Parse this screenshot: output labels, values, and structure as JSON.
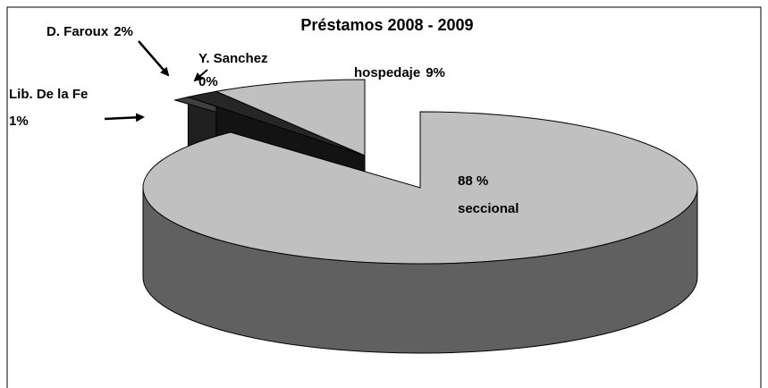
{
  "chart_data": {
    "type": "pie",
    "title": "Préstamos 2008 - 2009",
    "categories": [
      "seccional",
      "Lib. De la Fe",
      "D. Faroux",
      "Y. Sanchez",
      "hospedaje"
    ],
    "values": [
      88,
      1,
      2,
      0,
      9
    ],
    "value_labels": [
      "88 %",
      "1%",
      "2%",
      "0%",
      "9%"
    ],
    "colors": [
      "#c0c0c0",
      "#404040",
      "#262626",
      "#808080",
      "#c0c0c0"
    ]
  }
}
